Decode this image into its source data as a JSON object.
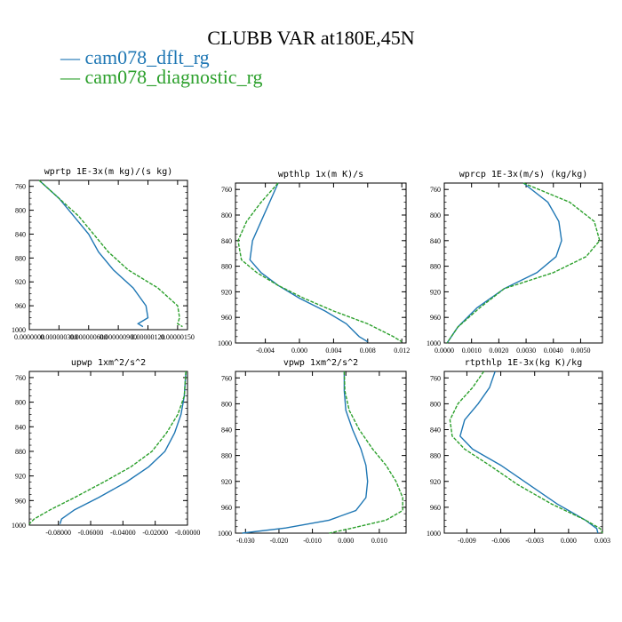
{
  "figure": {
    "title": "CLUBB VAR at180E,45N"
  },
  "legend": [
    {
      "label": "cam078_dflt_rg",
      "color": "#1f77b4"
    },
    {
      "label": "cam078_diagnostic_rg",
      "color": "#2ca02c"
    }
  ],
  "chart_data": [
    {
      "type": "line",
      "title": "wprtp  1E-3x(m kg)/(s kg)",
      "xlim": [
        0.0,
        1.6e-06
      ],
      "ylim": [
        1000,
        750
      ],
      "xticks": [
        0.0,
        3e-07,
        6e-07,
        9e-07,
        1.2e-06,
        1.5e-06
      ],
      "xticklabels": [
        "0.0000000",
        "0.000000300",
        "0.000000600",
        "0.000000900",
        "0.00000120",
        "0.00000150"
      ],
      "yticks": [
        760,
        800,
        840,
        880,
        920,
        960,
        1000
      ],
      "series": [
        {
          "name": "cam078_dflt_rg",
          "x": [
            1e-07,
            3e-07,
            4.5e-07,
            6e-07,
            7e-07,
            8.5e-07,
            1.05e-06,
            1.18e-06,
            1.2e-06,
            1.1e-06,
            1.15e-06
          ],
          "y": [
            750,
            780,
            810,
            840,
            870,
            900,
            930,
            960,
            980,
            990,
            995
          ]
        },
        {
          "name": "cam078_diagnostic_rg",
          "x": [
            1e-07,
            3e-07,
            5e-07,
            6.5e-07,
            8e-07,
            1e-06,
            1.3e-06,
            1.5e-06,
            1.52e-06,
            1.5e-06,
            1.55e-06
          ],
          "y": [
            750,
            780,
            810,
            840,
            870,
            900,
            930,
            960,
            980,
            990,
            995
          ]
        }
      ]
    },
    {
      "type": "line",
      "title": "wpthlp  1x(m K)/s",
      "xlim": [
        -0.0075,
        0.0125
      ],
      "ylim": [
        1000,
        750
      ],
      "xticks": [
        -0.004,
        0.0,
        0.004,
        0.008,
        0.012
      ],
      "xticklabels": [
        "-0.004",
        "0.000",
        "0.004",
        "0.008",
        "0.012"
      ],
      "yticks": [
        760,
        800,
        840,
        880,
        920,
        960,
        1000
      ],
      "series": [
        {
          "name": "cam078_dflt_rg",
          "x": [
            -0.0025,
            -0.0035,
            -0.0045,
            -0.0055,
            -0.0058,
            -0.0045,
            -0.0025,
            0.0,
            0.003,
            0.0055,
            0.007,
            0.008
          ],
          "y": [
            750,
            780,
            810,
            840,
            870,
            890,
            910,
            930,
            950,
            970,
            990,
            998
          ]
        },
        {
          "name": "cam078_diagnostic_rg",
          "x": [
            -0.0025,
            -0.0045,
            -0.0062,
            -0.0072,
            -0.0068,
            -0.005,
            -0.0025,
            0.0005,
            0.004,
            0.008,
            0.011,
            0.012
          ],
          "y": [
            750,
            780,
            810,
            840,
            870,
            890,
            910,
            930,
            950,
            970,
            990,
            998
          ]
        }
      ]
    },
    {
      "type": "line",
      "title": "wprcp  1E-3x(m/s) (kg/kg)",
      "xlim": [
        0.0,
        0.0058
      ],
      "ylim": [
        1000,
        750
      ],
      "xticks": [
        0.0,
        0.001,
        0.002,
        0.003,
        0.004,
        0.005
      ],
      "xticklabels": [
        "0.0000",
        "0.0010",
        "0.0020",
        "0.0030",
        "0.0040",
        "0.0050"
      ],
      "yticks": [
        760,
        800,
        840,
        880,
        920,
        960,
        1000
      ],
      "series": [
        {
          "name": "cam078_dflt_rg",
          "x": [
            0.0029,
            0.0038,
            0.0042,
            0.0043,
            0.0041,
            0.0034,
            0.0022,
            0.0012,
            0.0005,
            0.0001
          ],
          "y": [
            750,
            780,
            810,
            840,
            865,
            890,
            915,
            945,
            975,
            1000
          ]
        },
        {
          "name": "cam078_diagnostic_rg",
          "x": [
            0.0029,
            0.0046,
            0.0055,
            0.0057,
            0.0052,
            0.004,
            0.0022,
            0.0013,
            0.0005,
            0.0001
          ],
          "y": [
            750,
            780,
            810,
            840,
            865,
            890,
            915,
            945,
            975,
            1000
          ]
        }
      ]
    },
    {
      "type": "line",
      "title": "upwp  1xm^2/s^2",
      "xlim": [
        -0.098,
        0.0
      ],
      "ylim": [
        1000,
        750
      ],
      "xticks": [
        -0.08,
        -0.06,
        -0.04,
        -0.02,
        0.0
      ],
      "xticklabels": [
        "-0.08000",
        "-0.06000",
        "-0.04000",
        "-0.02000",
        "-0.00000"
      ],
      "yticks": [
        760,
        800,
        840,
        880,
        920,
        960,
        1000
      ],
      "series": [
        {
          "name": "cam078_dflt_rg",
          "x": [
            -0.001,
            -0.002,
            -0.004,
            -0.008,
            -0.014,
            -0.024,
            -0.038,
            -0.055,
            -0.07,
            -0.078,
            -0.079
          ],
          "y": [
            750,
            790,
            820,
            850,
            880,
            905,
            930,
            955,
            975,
            990,
            998
          ]
        },
        {
          "name": "cam078_diagnostic_rg",
          "x": [
            -0.001,
            -0.002,
            -0.006,
            -0.013,
            -0.022,
            -0.035,
            -0.052,
            -0.07,
            -0.085,
            -0.095,
            -0.098
          ],
          "y": [
            750,
            790,
            820,
            850,
            880,
            905,
            930,
            955,
            975,
            990,
            998
          ]
        }
      ]
    },
    {
      "type": "line",
      "title": "vpwp  1xm^2/s^2",
      "xlim": [
        -0.033,
        0.018
      ],
      "ylim": [
        1000,
        750
      ],
      "xticks": [
        -0.03,
        -0.02,
        -0.01,
        0.0,
        0.01
      ],
      "xticklabels": [
        "-0.030",
        "-0.020",
        "-0.010",
        "0.000",
        "0.010"
      ],
      "yticks": [
        760,
        800,
        840,
        880,
        920,
        960,
        1000
      ],
      "series": [
        {
          "name": "cam078_dflt_rg",
          "x": [
            -0.0005,
            -0.0005,
            0.0,
            0.002,
            0.0045,
            0.006,
            0.0065,
            0.006,
            0.003,
            -0.005,
            -0.018,
            -0.031
          ],
          "y": [
            750,
            780,
            810,
            840,
            870,
            895,
            920,
            945,
            965,
            980,
            992,
            1000
          ]
        },
        {
          "name": "cam078_diagnostic_rg",
          "x": [
            -0.0005,
            -0.0003,
            0.001,
            0.004,
            0.008,
            0.012,
            0.015,
            0.017,
            0.017,
            0.012,
            0.002,
            -0.005
          ],
          "y": [
            750,
            780,
            810,
            840,
            870,
            895,
            920,
            945,
            965,
            980,
            992,
            1000
          ]
        }
      ]
    },
    {
      "type": "line",
      "title": "rtpthlp  1E-3x(kg K)/kg",
      "xlim": [
        -0.011,
        0.003
      ],
      "ylim": [
        1000,
        750
      ],
      "xticks": [
        -0.009,
        -0.006,
        -0.003,
        0.0,
        0.003
      ],
      "xticklabels": [
        "-0.009",
        "-0.006",
        "-0.003",
        "0.000",
        "0.003"
      ],
      "yticks": [
        760,
        800,
        840,
        880,
        920,
        960,
        1000
      ],
      "series": [
        {
          "name": "cam078_dflt_rg",
          "x": [
            -0.0065,
            -0.007,
            -0.008,
            -0.0092,
            -0.0096,
            -0.0085,
            -0.006,
            -0.0035,
            -0.001,
            0.0015,
            0.0025,
            0.0026
          ],
          "y": [
            750,
            775,
            800,
            825,
            850,
            870,
            895,
            925,
            955,
            980,
            993,
            1000
          ]
        },
        {
          "name": "cam078_diagnostic_rg",
          "x": [
            -0.0075,
            -0.0085,
            -0.0098,
            -0.0105,
            -0.0103,
            -0.0092,
            -0.007,
            -0.0045,
            -0.0015,
            0.0015,
            0.0028,
            0.003
          ],
          "y": [
            750,
            775,
            800,
            825,
            850,
            870,
            895,
            925,
            955,
            980,
            993,
            1000
          ]
        }
      ]
    }
  ]
}
